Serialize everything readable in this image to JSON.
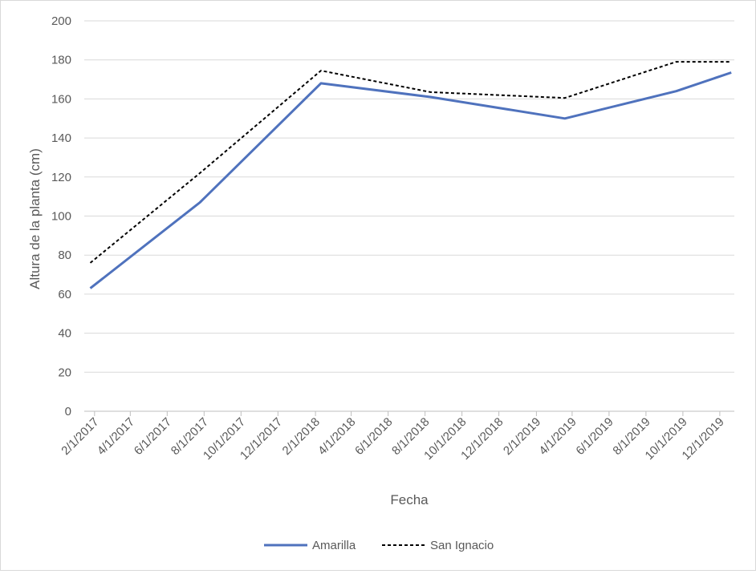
{
  "chart_data": {
    "type": "line",
    "title": "",
    "xlabel": "Fecha",
    "ylabel": "Altura de la planta (cm)",
    "ylim": [
      0,
      200
    ],
    "yticks": [
      0,
      20,
      40,
      60,
      80,
      100,
      120,
      140,
      160,
      180,
      200
    ],
    "xlim": [
      "2017-01-15",
      "2019-12-25"
    ],
    "xticks": [
      {
        "date": "2017-02-01",
        "label": "2/1/2017"
      },
      {
        "date": "2017-04-01",
        "label": "4/1/2017"
      },
      {
        "date": "2017-06-01",
        "label": "6/1/2017"
      },
      {
        "date": "2017-08-01",
        "label": "8/1/2017"
      },
      {
        "date": "2017-10-01",
        "label": "10/1/2017"
      },
      {
        "date": "2017-12-01",
        "label": "12/1/2017"
      },
      {
        "date": "2018-02-01",
        "label": "2/1/2018"
      },
      {
        "date": "2018-04-01",
        "label": "4/1/2018"
      },
      {
        "date": "2018-06-01",
        "label": "6/1/2018"
      },
      {
        "date": "2018-08-01",
        "label": "8/1/2018"
      },
      {
        "date": "2018-10-01",
        "label": "10/1/2018"
      },
      {
        "date": "2018-12-01",
        "label": "12/1/2018"
      },
      {
        "date": "2019-02-01",
        "label": "2/1/2019"
      },
      {
        "date": "2019-04-01",
        "label": "4/1/2019"
      },
      {
        "date": "2019-06-01",
        "label": "6/1/2019"
      },
      {
        "date": "2019-08-01",
        "label": "8/1/2019"
      },
      {
        "date": "2019-10-01",
        "label": "10/1/2019"
      },
      {
        "date": "2019-12-01",
        "label": "12/1/2019"
      }
    ],
    "grid": "horizontal",
    "legend_position": "bottom",
    "series": [
      {
        "name": "Amarilla",
        "color": "#4f72bd",
        "style": "solid",
        "points": [
          {
            "x": "2017-01-25",
            "y": 63
          },
          {
            "x": "2017-07-25",
            "y": 107
          },
          {
            "x": "2018-02-10",
            "y": 168
          },
          {
            "x": "2018-08-10",
            "y": 161
          },
          {
            "x": "2019-03-20",
            "y": 150
          },
          {
            "x": "2019-09-20",
            "y": 164
          },
          {
            "x": "2019-12-20",
            "y": 173.5
          }
        ]
      },
      {
        "name": "San Ignacio",
        "color": "#000000",
        "style": "dashed",
        "points": [
          {
            "x": "2017-01-25",
            "y": 76
          },
          {
            "x": "2017-07-25",
            "y": 122
          },
          {
            "x": "2018-02-10",
            "y": 174.5
          },
          {
            "x": "2018-08-10",
            "y": 163.5
          },
          {
            "x": "2019-03-20",
            "y": 160.5
          },
          {
            "x": "2019-09-20",
            "y": 179
          },
          {
            "x": "2019-12-20",
            "y": 179
          }
        ]
      }
    ]
  }
}
